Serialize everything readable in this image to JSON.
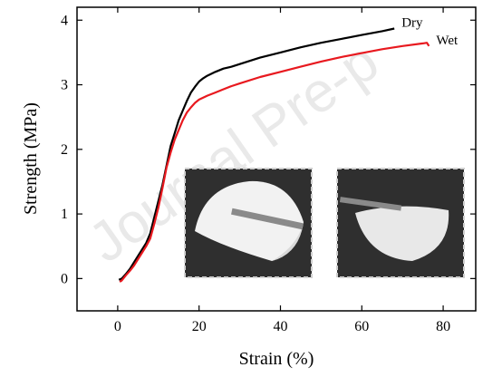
{
  "watermark": "Journal Pre-p",
  "chart_data": {
    "type": "line",
    "xlabel": "Strain (%)",
    "ylabel": "Strength (MPa)",
    "xlim": [
      -10,
      88
    ],
    "ylim": [
      -0.5,
      4.2
    ],
    "xticks": [
      0,
      20,
      40,
      60,
      80
    ],
    "yticks": [
      0,
      1,
      2,
      3,
      4
    ],
    "grid": false,
    "series": [
      {
        "name": "Dry",
        "color": "#000000",
        "x": [
          0.3,
          1,
          2,
          3,
          4,
          5,
          6,
          7,
          8,
          9,
          10,
          11,
          12,
          13,
          14,
          15,
          16,
          17,
          18,
          19,
          20,
          21,
          22,
          24,
          26,
          28,
          30,
          35,
          40,
          45,
          50,
          55,
          60,
          65,
          68
        ],
        "y": [
          -0.02,
          0.0,
          0.07,
          0.15,
          0.25,
          0.35,
          0.45,
          0.55,
          0.7,
          0.95,
          1.2,
          1.45,
          1.75,
          2.05,
          2.25,
          2.45,
          2.6,
          2.75,
          2.88,
          2.97,
          3.05,
          3.1,
          3.14,
          3.2,
          3.25,
          3.28,
          3.32,
          3.42,
          3.5,
          3.58,
          3.65,
          3.71,
          3.77,
          3.83,
          3.87
        ]
      },
      {
        "name": "Wet",
        "color": "#e8191f",
        "x": [
          0.5,
          1,
          2,
          3,
          4,
          5,
          6,
          7,
          8,
          9,
          10,
          11,
          12,
          13,
          14,
          15,
          16,
          17,
          18,
          19,
          20,
          21,
          22,
          24,
          26,
          28,
          30,
          35,
          40,
          45,
          50,
          55,
          60,
          65,
          70,
          75,
          76,
          76.5
        ],
        "y": [
          -0.05,
          -0.03,
          0.05,
          0.12,
          0.2,
          0.3,
          0.4,
          0.5,
          0.62,
          0.85,
          1.1,
          1.4,
          1.72,
          1.95,
          2.15,
          2.3,
          2.45,
          2.57,
          2.65,
          2.72,
          2.77,
          2.8,
          2.83,
          2.88,
          2.93,
          2.98,
          3.02,
          3.12,
          3.2,
          3.28,
          3.36,
          3.43,
          3.49,
          3.55,
          3.6,
          3.64,
          3.65,
          3.6
        ]
      }
    ]
  },
  "insets": [
    {
      "name": "dry-membrane-photo"
    },
    {
      "name": "wet-membrane-photo"
    }
  ]
}
